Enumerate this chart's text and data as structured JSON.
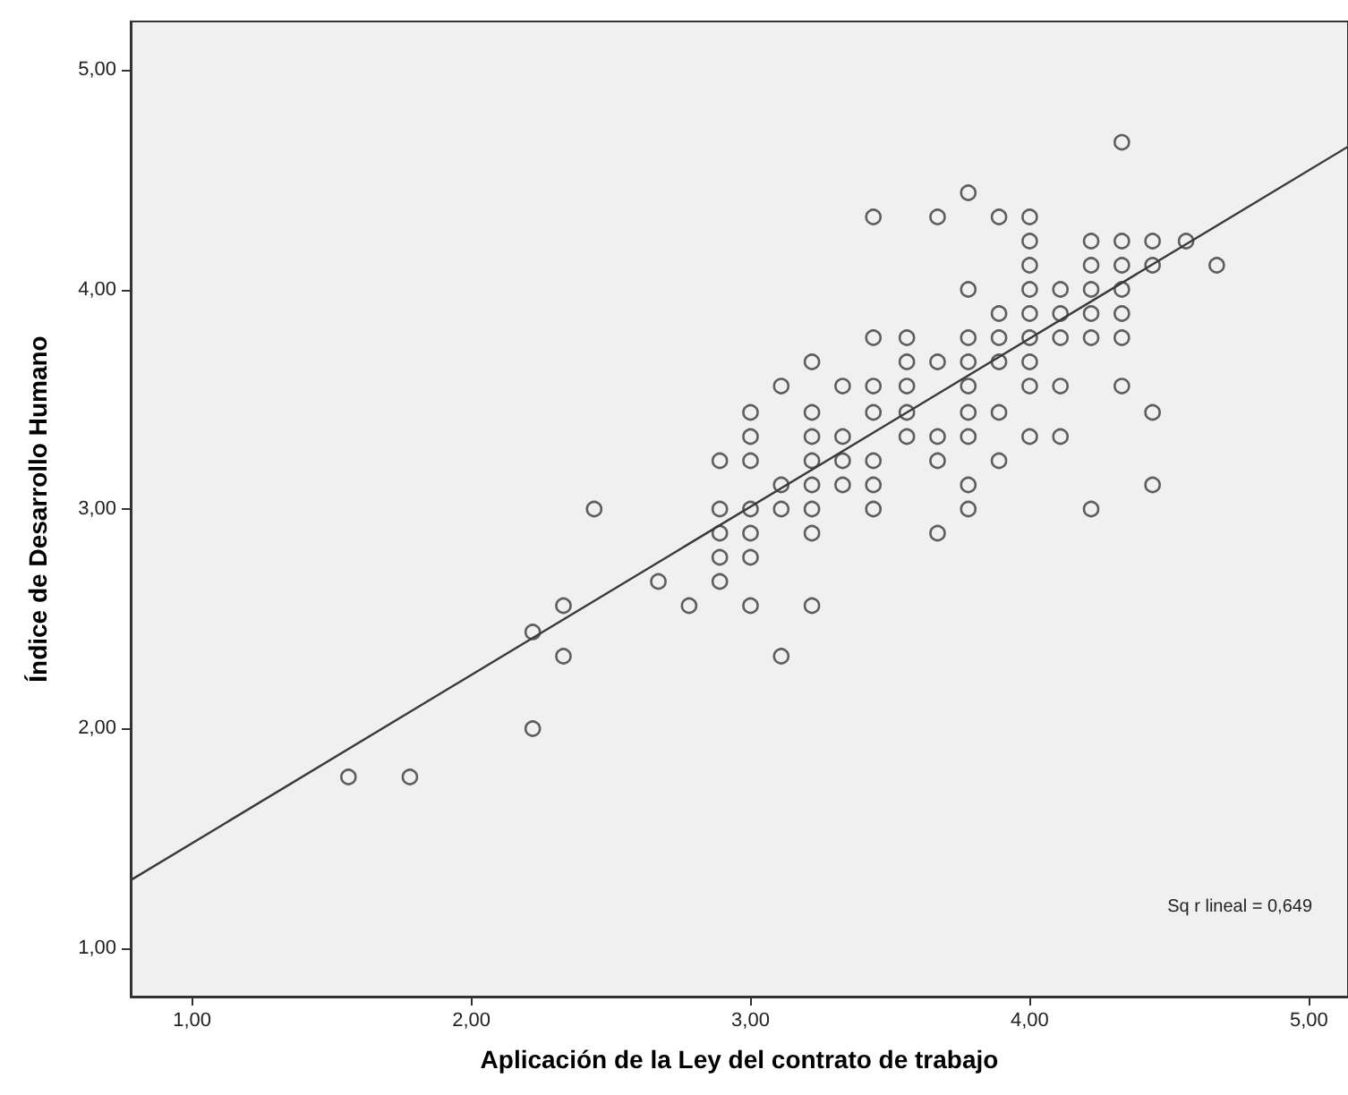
{
  "chart_data": {
    "type": "scatter",
    "xlabel": "Aplicación de la Ley del contrato de trabajo",
    "ylabel": "Índice de Desarrollo Humano",
    "xlim": [
      0.78,
      5.14
    ],
    "ylim": [
      0.78,
      5.22
    ],
    "xticks": [
      {
        "value": 1,
        "label": "1,00"
      },
      {
        "value": 2,
        "label": "2,00"
      },
      {
        "value": 3,
        "label": "3,00"
      },
      {
        "value": 4,
        "label": "4,00"
      },
      {
        "value": 5,
        "label": "5,00"
      }
    ],
    "yticks": [
      {
        "value": 1,
        "label": "1,00"
      },
      {
        "value": 2,
        "label": "2,00"
      },
      {
        "value": 3,
        "label": "3,00"
      },
      {
        "value": 4,
        "label": "4,00"
      },
      {
        "value": 5,
        "label": "5,00"
      }
    ],
    "grid": false,
    "marker": "circle",
    "series": [
      {
        "color": "#3a3a3a",
        "x": [
          1.56,
          1.78,
          2.22,
          2.22,
          2.33,
          2.33,
          2.44,
          2.67,
          2.78,
          2.89,
          2.89,
          2.89,
          2.89,
          2.89,
          3.0,
          3.0,
          3.0,
          3.0,
          3.0,
          3.0,
          3.0,
          3.11,
          3.11,
          3.11,
          3.11,
          3.22,
          3.22,
          3.22,
          3.22,
          3.22,
          3.22,
          3.22,
          3.22,
          3.33,
          3.33,
          3.33,
          3.33,
          3.44,
          3.44,
          3.44,
          3.44,
          3.44,
          3.44,
          3.44,
          3.56,
          3.56,
          3.56,
          3.56,
          3.56,
          3.67,
          3.67,
          3.67,
          3.67,
          3.67,
          3.78,
          3.78,
          3.78,
          3.78,
          3.78,
          3.78,
          3.78,
          3.78,
          3.78,
          3.89,
          3.89,
          3.89,
          3.89,
          3.89,
          3.89,
          4.0,
          4.0,
          4.0,
          4.0,
          4.0,
          4.0,
          4.0,
          4.0,
          4.0,
          4.11,
          4.11,
          4.11,
          4.11,
          4.11,
          4.22,
          4.22,
          4.22,
          4.22,
          4.22,
          4.22,
          4.33,
          4.33,
          4.33,
          4.33,
          4.33,
          4.33,
          4.33,
          4.44,
          4.44,
          4.44,
          4.44,
          4.56,
          4.67
        ],
        "values": [
          1.78,
          1.78,
          2.0,
          2.44,
          2.56,
          2.33,
          3.0,
          2.67,
          2.56,
          3.22,
          3.0,
          2.89,
          2.78,
          2.67,
          3.44,
          3.33,
          3.22,
          3.0,
          2.89,
          2.78,
          2.56,
          3.56,
          3.11,
          3.0,
          2.33,
          3.67,
          3.44,
          3.33,
          3.22,
          3.11,
          3.0,
          2.89,
          2.56,
          3.56,
          3.33,
          3.22,
          3.11,
          4.33,
          3.78,
          3.56,
          3.44,
          3.22,
          3.11,
          3.0,
          3.78,
          3.67,
          3.56,
          3.44,
          3.33,
          4.33,
          3.67,
          3.33,
          3.22,
          2.89,
          4.44,
          4.0,
          3.78,
          3.67,
          3.56,
          3.44,
          3.33,
          3.11,
          3.0,
          4.33,
          3.89,
          3.78,
          3.67,
          3.44,
          3.22,
          4.33,
          4.22,
          4.11,
          4.0,
          3.89,
          3.78,
          3.67,
          3.56,
          3.33,
          4.0,
          3.89,
          3.78,
          3.56,
          3.33,
          4.22,
          4.11,
          4.0,
          3.89,
          3.78,
          3.0,
          4.67,
          4.22,
          4.11,
          4.0,
          3.89,
          3.78,
          3.56,
          4.22,
          4.11,
          3.44,
          3.11,
          4.22,
          4.11
        ]
      },
      {
        "type": "line",
        "color": "#3a3a3a",
        "marker": "none",
        "line_style": "solid",
        "x": [
          0.78,
          5.14
        ],
        "values": [
          1.31,
          4.65
        ]
      }
    ],
    "annotations": [
      "Sq r lineal = 0,649"
    ]
  }
}
